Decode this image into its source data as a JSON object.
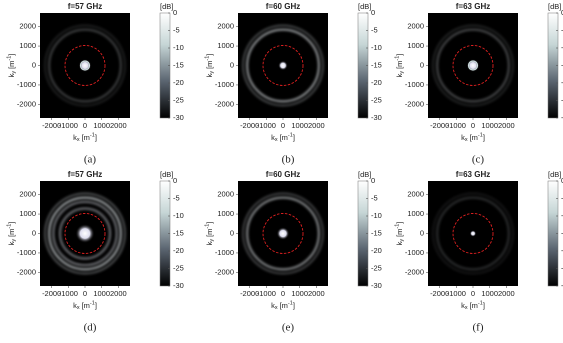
{
  "chart_data": [
    {
      "type": "heatmap",
      "title": "f=57 GHz",
      "caption": "(a)",
      "xlabel": {
        "symbol": "k",
        "sub": "x",
        "unit": "[m",
        "sup": "-1",
        "end": "]"
      },
      "ylabel": {
        "symbol": "k",
        "sub": "y",
        "unit": "[m",
        "sup": "-1",
        "end": "]"
      },
      "xlim": [
        -2700,
        2700
      ],
      "ylim": [
        -2700,
        2700
      ],
      "xticks": [
        -2000,
        -1000,
        0,
        1000,
        2000
      ],
      "yticks": [
        -2000,
        -1000,
        0,
        1000,
        2000
      ],
      "colorbar": {
        "label": "[dB]",
        "lim": [
          -30,
          0
        ],
        "ticks": [
          0,
          -5,
          -10,
          -15,
          -20,
          -25,
          -30
        ]
      }
    },
    {
      "type": "heatmap",
      "title": "f=60 GHz",
      "caption": "(b)",
      "xlabel": {
        "symbol": "k",
        "sub": "x",
        "unit": "[m",
        "sup": "-1",
        "end": "]"
      },
      "ylabel": {
        "symbol": "k",
        "sub": "y",
        "unit": "[m",
        "sup": "-1",
        "end": "]"
      },
      "xlim": [
        -2700,
        2700
      ],
      "ylim": [
        -2700,
        2700
      ],
      "xticks": [
        -2000,
        -1000,
        0,
        1000,
        2000
      ],
      "yticks": [
        -2000,
        -1000,
        0,
        1000,
        2000
      ],
      "colorbar": {
        "label": "[dB]",
        "lim": [
          -30,
          0
        ],
        "ticks": [
          0,
          -5,
          -10,
          -15,
          -20,
          -25,
          -30
        ]
      }
    },
    {
      "type": "heatmap",
      "title": "f=63 GHz",
      "caption": "(c)",
      "xlabel": {
        "symbol": "k",
        "sub": "x",
        "unit": "[m",
        "sup": "-1",
        "end": "]"
      },
      "ylabel": {
        "symbol": "k",
        "sub": "y",
        "unit": "[m",
        "sup": "-1",
        "end": "]"
      },
      "xlim": [
        -2700,
        2700
      ],
      "ylim": [
        -2700,
        2700
      ],
      "xticks": [
        -2000,
        -1000,
        0,
        1000,
        2000
      ],
      "yticks": [
        -2000,
        -1000,
        0,
        1000,
        2000
      ],
      "colorbar": {
        "label": "[dB]",
        "lim": [
          -30,
          0
        ],
        "ticks": [
          0,
          -5,
          -10,
          -15,
          -20,
          -25,
          -30
        ]
      }
    },
    {
      "type": "heatmap",
      "title": "f=57 GHz",
      "caption": "(d)",
      "xlabel": {
        "symbol": "k",
        "sub": "x",
        "unit": "[m",
        "sup": "-1",
        "end": "]"
      },
      "ylabel": {
        "symbol": "k",
        "sub": "y",
        "unit": "[m",
        "sup": "-1",
        "end": "]"
      },
      "xlim": [
        -2700,
        2700
      ],
      "ylim": [
        -2700,
        2700
      ],
      "xticks": [
        -2000,
        -1000,
        0,
        1000,
        2000
      ],
      "yticks": [
        -2000,
        -1000,
        0,
        1000,
        2000
      ],
      "colorbar": {
        "label": "[dB]",
        "lim": [
          -30,
          0
        ],
        "ticks": [
          0,
          -5,
          -10,
          -15,
          -20,
          -25,
          -30
        ]
      }
    },
    {
      "type": "heatmap",
      "title": "f=60 GHz",
      "caption": "(e)",
      "xlabel": {
        "symbol": "k",
        "sub": "x",
        "unit": "[m",
        "sup": "-1",
        "end": "]"
      },
      "ylabel": {
        "symbol": "k",
        "sub": "y",
        "unit": "[m",
        "sup": "-1",
        "end": "]"
      },
      "xlim": [
        -2700,
        2700
      ],
      "ylim": [
        -2700,
        2700
      ],
      "xticks": [
        -2000,
        -1000,
        0,
        1000,
        2000
      ],
      "yticks": [
        -2000,
        -1000,
        0,
        1000,
        2000
      ],
      "colorbar": {
        "label": "[dB]",
        "lim": [
          -30,
          0
        ],
        "ticks": [
          0,
          -5,
          -10,
          -15,
          -20,
          -25,
          -30
        ]
      }
    },
    {
      "type": "heatmap",
      "title": "f=63 GHz",
      "caption": "(f)",
      "xlabel": {
        "symbol": "k",
        "sub": "x",
        "unit": "[m",
        "sup": "-1",
        "end": "]"
      },
      "ylabel": {
        "symbol": "k",
        "sub": "y",
        "unit": "[m",
        "sup": "-1",
        "end": "]"
      },
      "xlim": [
        -2700,
        2700
      ],
      "ylim": [
        -2700,
        2700
      ],
      "xticks": [
        -2000,
        -1000,
        0,
        1000,
        2000
      ],
      "yticks": [
        -2000,
        -1000,
        0,
        1000,
        2000
      ],
      "colorbar": {
        "label": "[dB]",
        "lim": [
          -30,
          0
        ],
        "ticks": [
          0,
          -5,
          -10,
          -15,
          -20,
          -25,
          -30
        ]
      }
    }
  ]
}
